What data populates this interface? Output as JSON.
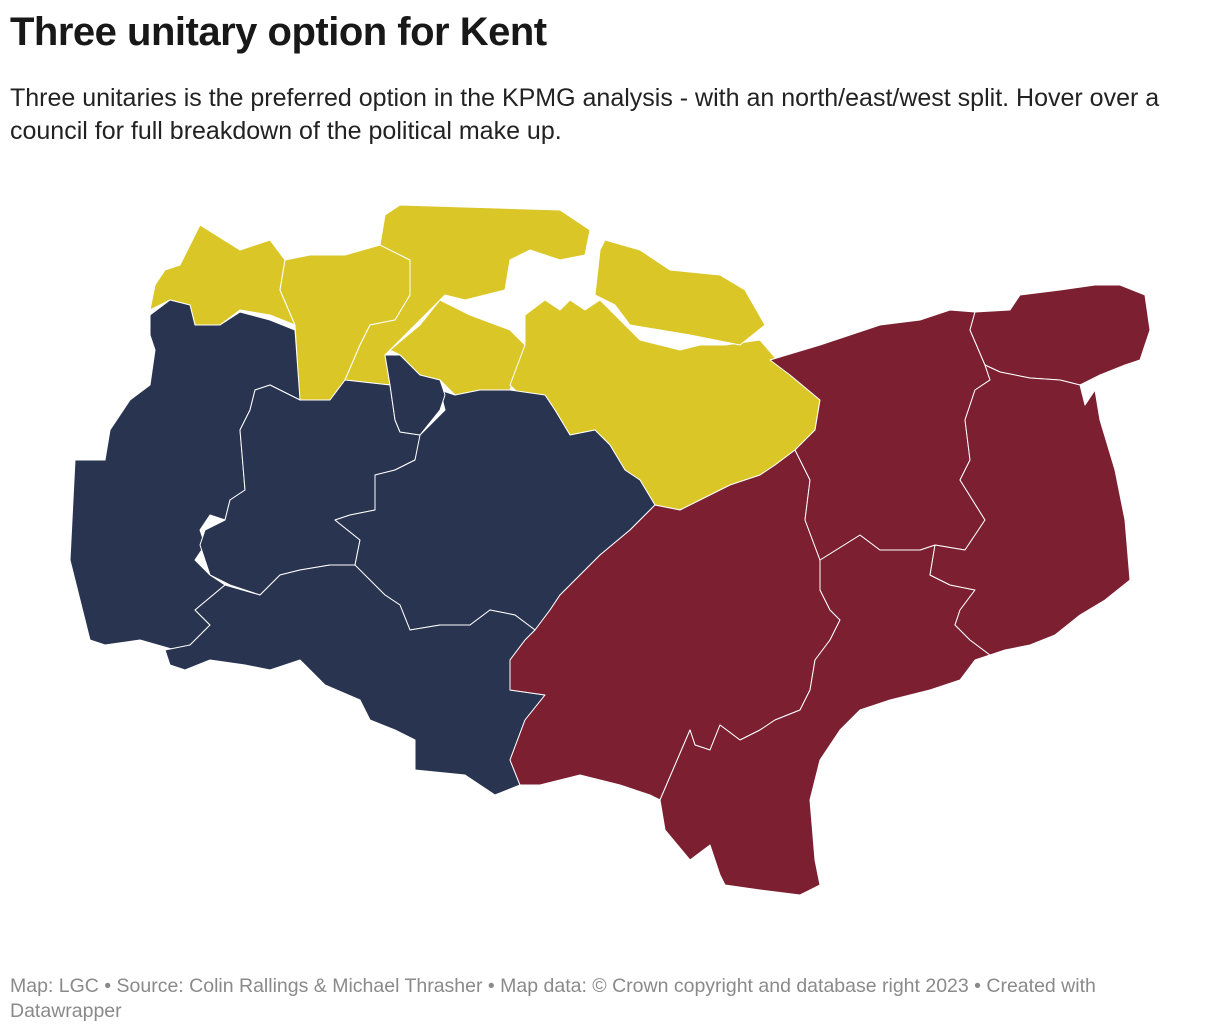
{
  "title": "Three unitary option for Kent",
  "subtitle": "Three unitaries is the preferred option in the KPMG analysis - with an north/east/west split. Hover over a council for full breakdown of the political make up.",
  "footer": "Map: LGC • Source: Colin Rallings & Michael Thrasher • Map data: © Crown copyright and database right 2023  • Created with Datawrapper"
}
